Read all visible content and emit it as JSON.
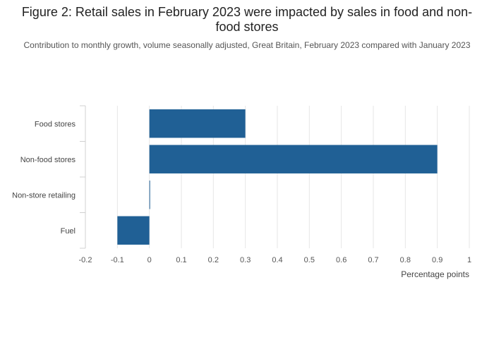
{
  "chart_data": {
    "type": "bar",
    "orientation": "horizontal",
    "title": "Figure 2: Retail sales in February 2023 were impacted by sales in food and non-food stores",
    "subtitle": "Contribution to monthly growth, volume seasonally adjusted, Great Britain, February 2023 compared with January 2023",
    "categories": [
      "Food stores",
      "Non-food stores",
      "Non-store retailing",
      "Fuel"
    ],
    "values": [
      0.3,
      0.9,
      0.0,
      -0.1
    ],
    "xlabel": "Percentage points",
    "ylabel": "",
    "xlim": [
      -0.2,
      1
    ],
    "xticks": [
      "-0.2",
      "-0.1",
      "0",
      "0.1",
      "0.2",
      "0.3",
      "0.4",
      "0.5",
      "0.6",
      "0.7",
      "0.8",
      "0.9",
      "1"
    ],
    "grid": true,
    "bar_color": "#206095",
    "grid_color": "#e6e6e6",
    "axis_color": "#d0d0d0"
  }
}
